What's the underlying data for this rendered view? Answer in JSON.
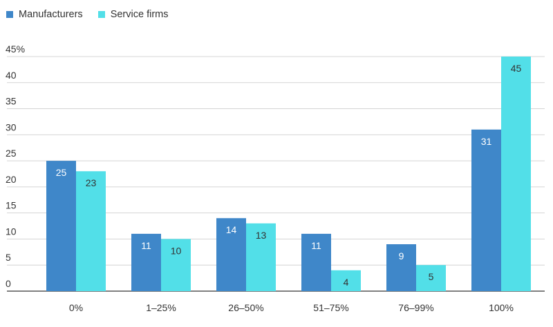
{
  "chart_data": {
    "type": "bar",
    "categories": [
      "0%",
      "1–25%",
      "26–50%",
      "51–75%",
      "76–99%",
      "100%"
    ],
    "series": [
      {
        "name": "Manufacturers",
        "values": [
          25,
          11,
          14,
          11,
          9,
          31
        ],
        "color": "#3f87c9",
        "label_color": "#ffffff"
      },
      {
        "name": "Service firms",
        "values": [
          23,
          10,
          13,
          4,
          5,
          45
        ],
        "color": "#52dfe8",
        "label_color": "#333333"
      }
    ],
    "ylim": [
      0,
      45
    ],
    "yticks": [
      "0",
      "5",
      "10",
      "15",
      "20",
      "25",
      "30",
      "35",
      "40",
      "45%"
    ],
    "grid": true,
    "legend_position": "top-left",
    "title": "",
    "xlabel": "",
    "ylabel": ""
  }
}
